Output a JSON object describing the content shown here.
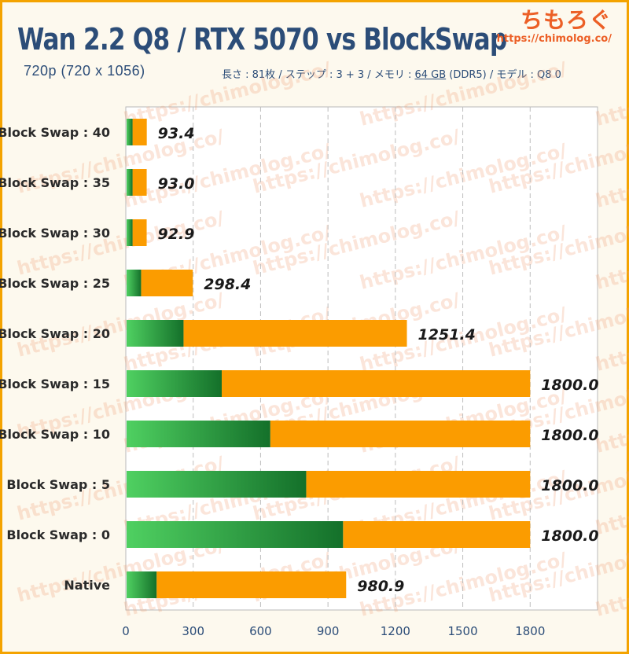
{
  "header": {
    "title": "Wan 2.2 Q8 / RTX 5070 vs BlockSwap",
    "subtitle": "720p (720 x 1056)",
    "specs_prefix": "長さ : 81枚 / ステップ : 3 + 3 / メモリ : ",
    "specs_memory": "64 GB",
    "specs_suffix": " (DDR5) / モデル : Q8 0"
  },
  "brand": {
    "name": "ちもろぐ",
    "url": "https://chimolog.co/"
  },
  "watermark_text": "https://chimolog.co/",
  "colors": {
    "green_light": "#4fd061",
    "green_dark": "#14702a",
    "orange": "#fb9c00",
    "axis_text": "#2c4d78",
    "frame": "#f4a300"
  },
  "chart_data": {
    "type": "bar",
    "orientation": "horizontal",
    "stacked": true,
    "categories": [
      "Block Swap : 40",
      "Block Swap : 35",
      "Block Swap : 30",
      "Block Swap : 25",
      "Block Swap : 20",
      "Block Swap : 15",
      "Block Swap : 10",
      "Block Swap : 5",
      "Block Swap : 0",
      "Native"
    ],
    "series": [
      {
        "values": [
          30,
          30,
          30,
          68,
          257,
          427,
          643,
          803,
          967,
          137
        ]
      },
      {
        "values": [
          63.4,
          63.0,
          62.9,
          230.4,
          994.4,
          1373.0,
          1157.0,
          997.0,
          833.0,
          843.9
        ]
      }
    ],
    "totals": [
      93.4,
      93.0,
      92.9,
      298.4,
      1251.4,
      1800.0,
      1800.0,
      1800.0,
      1800.0,
      980.9
    ],
    "total_labels": [
      "93.4",
      "93.0",
      "92.9",
      "298.4",
      "1251.4",
      "1800.0",
      "1800.0",
      "1800.0",
      "1800.0",
      "980.9"
    ],
    "xticks": [
      0,
      300,
      600,
      900,
      1200,
      1500,
      1800
    ],
    "xlim": [
      0,
      2100
    ],
    "grid": "vertical dashed",
    "legend": "none"
  }
}
